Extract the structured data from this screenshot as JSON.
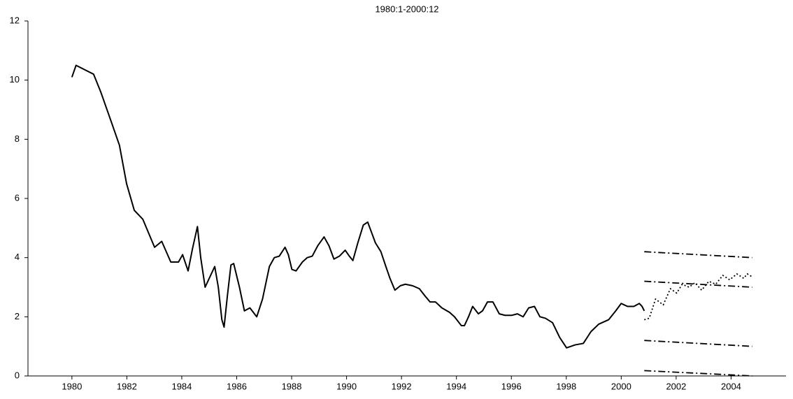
{
  "chart_data": {
    "type": "line",
    "title": "1980:1-2000:12",
    "xlim": [
      1978.4,
      2006
    ],
    "xticks": [
      1980,
      1982,
      1984,
      1986,
      1988,
      1990,
      1992,
      1994,
      1996,
      1998,
      2000,
      2002,
      2004
    ],
    "ylim": [
      0,
      12
    ],
    "yticks": [
      0,
      2,
      4,
      6,
      8,
      10,
      12
    ],
    "grid": false,
    "series": [
      {
        "color": "#000000",
        "style": "solid",
        "x": [
          1980,
          1980.15,
          1980.79,
          1981.05,
          1981.43,
          1981.73,
          1981.99,
          1982.27,
          1982.58,
          1983.01,
          1983.27,
          1983.6,
          1983.88,
          1984.03,
          1984.23,
          1984.39,
          1984.57,
          1984.69,
          1984.85,
          1985.05,
          1985.2,
          1985.33,
          1985.46,
          1985.54,
          1985.66,
          1985.79,
          1985.89,
          1986.1,
          1986.28,
          1986.48,
          1986.73,
          1986.94,
          1987.19,
          1987.37,
          1987.55,
          1987.76,
          1987.88,
          1988.01,
          1988.16,
          1988.39,
          1988.57,
          1988.75,
          1988.95,
          1989.18,
          1989.36,
          1989.54,
          1989.74,
          1989.95,
          1990.1,
          1990.23,
          1990.41,
          1990.61,
          1990.77,
          1990.89,
          1991.05,
          1991.25,
          1991.43,
          1991.58,
          1991.76,
          1991.96,
          1992.14,
          1992.4,
          1992.65,
          1992.86,
          1993.04,
          1993.24,
          1993.47,
          1993.75,
          1993.93,
          1994.18,
          1994.29,
          1994.44,
          1994.59,
          1994.8,
          1994.95,
          1995.13,
          1995.33,
          1995.56,
          1995.77,
          1996.02,
          1996.22,
          1996.43,
          1996.63,
          1996.84,
          1997.04,
          1997.24,
          1997.5,
          1997.76,
          1998.01,
          1998.32,
          1998.62,
          1998.9,
          1999.18,
          1999.54,
          1999.8,
          2000,
          2000.23,
          2000.46,
          2000.66,
          2000.76,
          2000.84
        ],
        "values": [
          10.1,
          10.5,
          10.2,
          9.6,
          8.6,
          7.8,
          6.5,
          5.6,
          5.3,
          4.35,
          4.55,
          3.85,
          3.85,
          4.1,
          3.55,
          4.3,
          5.05,
          4.0,
          3.0,
          3.4,
          3.7,
          3.0,
          1.9,
          1.65,
          2.7,
          3.75,
          3.8,
          3.0,
          2.2,
          2.3,
          2.0,
          2.6,
          3.7,
          4.0,
          4.05,
          4.35,
          4.1,
          3.6,
          3.55,
          3.85,
          4.0,
          4.05,
          4.4,
          4.7,
          4.4,
          3.95,
          4.05,
          4.25,
          4.05,
          3.9,
          4.5,
          5.1,
          5.2,
          4.9,
          4.5,
          4.2,
          3.7,
          3.3,
          2.9,
          3.05,
          3.1,
          3.05,
          2.95,
          2.7,
          2.5,
          2.5,
          2.3,
          2.15,
          2.0,
          1.7,
          1.7,
          2.0,
          2.35,
          2.1,
          2.2,
          2.5,
          2.5,
          2.1,
          2.05,
          2.05,
          2.1,
          2.0,
          2.3,
          2.35,
          2.0,
          1.95,
          1.8,
          1.3,
          0.95,
          1.05,
          1.1,
          1.5,
          1.75,
          1.9,
          2.2,
          2.45,
          2.35,
          2.35,
          2.45,
          2.35,
          2.2
        ]
      },
      {
        "color": "#000000",
        "style": "dotted",
        "x": [
          2000.84,
          2001.02,
          2001.25,
          2001.53,
          2001.79,
          2002.02,
          2002.22,
          2002.47,
          2002.68,
          2002.93,
          2003.19,
          2003.44,
          2003.7,
          2003.95,
          2004.21,
          2004.46,
          2004.59,
          2004.77
        ],
        "values": [
          1.9,
          1.95,
          2.6,
          2.4,
          2.95,
          2.8,
          3.1,
          3.0,
          3.15,
          2.9,
          3.2,
          3.1,
          3.4,
          3.25,
          3.45,
          3.3,
          3.45,
          3.35
        ]
      },
      {
        "color": "#000000",
        "style": "dashdot",
        "x": [
          2000.84,
          2004.77
        ],
        "values": [
          4.2,
          4.0
        ]
      },
      {
        "color": "#000000",
        "style": "dashdot",
        "x": [
          2000.84,
          2004.77
        ],
        "values": [
          3.2,
          3.0
        ]
      },
      {
        "color": "#000000",
        "style": "dashdot",
        "x": [
          2000.84,
          2004.77
        ],
        "values": [
          1.2,
          1.0
        ]
      },
      {
        "color": "#000000",
        "style": "dashdot",
        "x": [
          2000.84,
          2004.77
        ],
        "values": [
          0.18,
          0.0
        ]
      }
    ]
  }
}
